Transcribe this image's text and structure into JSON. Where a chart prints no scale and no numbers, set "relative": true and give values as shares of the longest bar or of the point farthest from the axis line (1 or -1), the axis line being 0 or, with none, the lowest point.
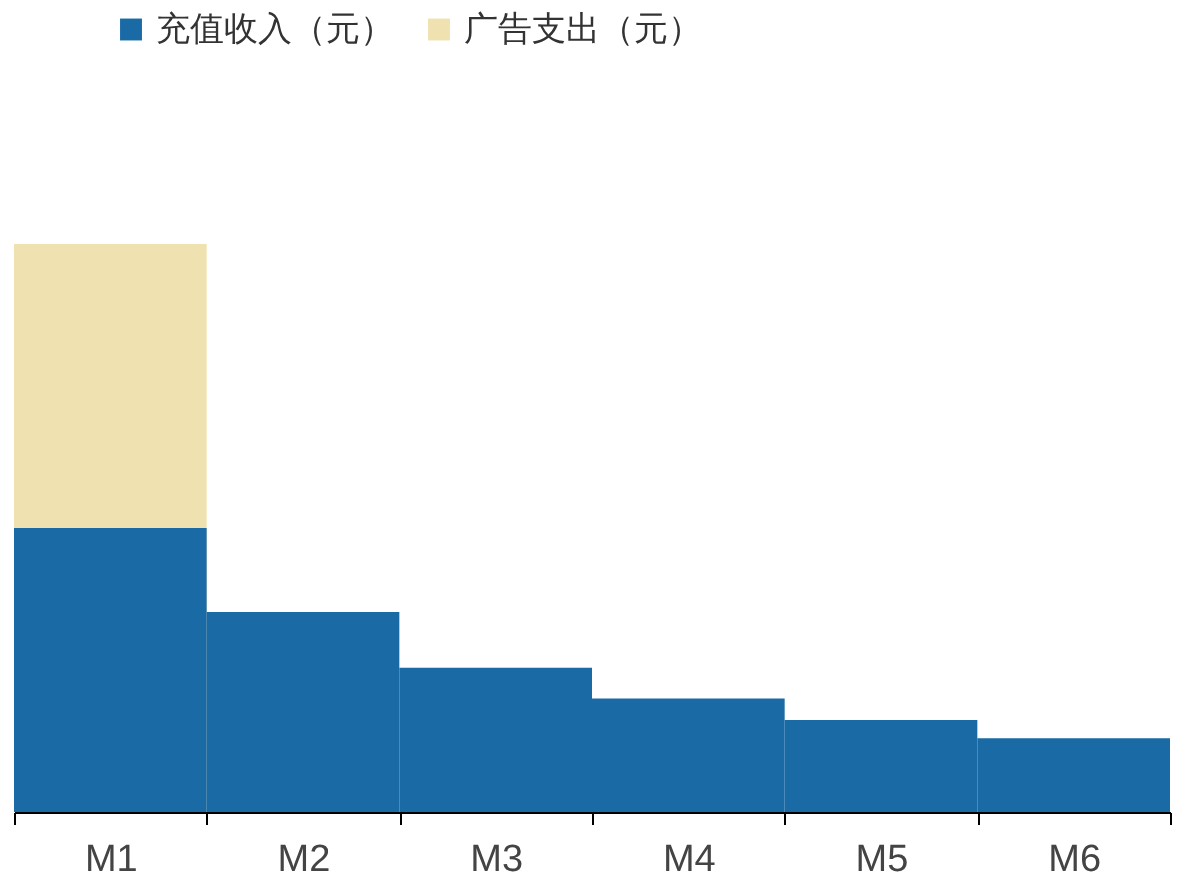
{
  "chart_data": {
    "type": "bar",
    "relative": true,
    "categories": [
      "M1",
      "M2",
      "M3",
      "M4",
      "M5",
      "M6"
    ],
    "series": [
      {
        "name": "广告支出（元）",
        "color": "#f0e1b0",
        "values": [
          1,
          null,
          null,
          null,
          null,
          null
        ]
      },
      {
        "name": "充值收入（元）",
        "color": "#1a6aa5",
        "values": [
          0.5,
          0.352,
          0.254,
          0.2,
          0.162,
          0.13
        ]
      }
    ],
    "legend": "top left",
    "grid": false
  }
}
